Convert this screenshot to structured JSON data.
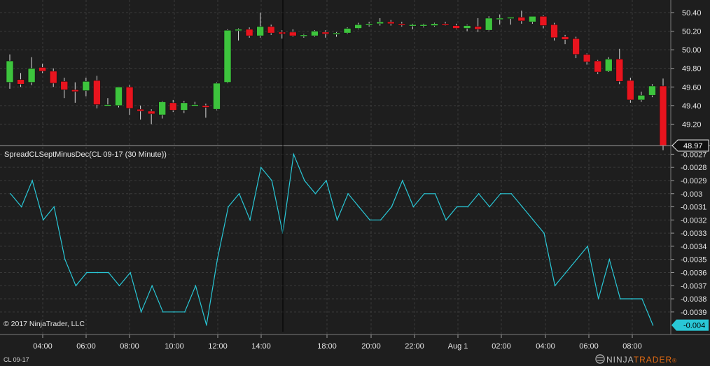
{
  "chart_data": [
    {
      "type": "candlestick",
      "instrument": "CL 09-17",
      "y_ticks": [
        "50.40",
        "50.20",
        "50.00",
        "49.80",
        "49.60",
        "49.40",
        "49.20"
      ],
      "ylim": [
        49.0,
        50.52
      ],
      "last_price": "48.97",
      "grid": true,
      "candles": [
        {
          "o": 49.65,
          "h": 49.95,
          "l": 49.58,
          "c": 49.88
        },
        {
          "o": 49.68,
          "h": 49.75,
          "l": 49.6,
          "c": 49.63
        },
        {
          "o": 49.65,
          "h": 49.92,
          "l": 49.62,
          "c": 49.8
        },
        {
          "o": 49.81,
          "h": 49.85,
          "l": 49.75,
          "c": 49.77
        },
        {
          "o": 49.77,
          "h": 49.8,
          "l": 49.6,
          "c": 49.64
        },
        {
          "o": 49.66,
          "h": 49.7,
          "l": 49.48,
          "c": 49.57
        },
        {
          "o": 49.57,
          "h": 49.65,
          "l": 49.43,
          "c": 49.55
        },
        {
          "o": 49.56,
          "h": 49.7,
          "l": 49.5,
          "c": 49.66
        },
        {
          "o": 49.67,
          "h": 49.72,
          "l": 49.37,
          "c": 49.41
        },
        {
          "o": 49.41,
          "h": 49.48,
          "l": 49.4,
          "c": 49.41
        },
        {
          "o": 49.4,
          "h": 49.6,
          "l": 49.38,
          "c": 49.6
        },
        {
          "o": 49.6,
          "h": 49.62,
          "l": 49.3,
          "c": 49.37
        },
        {
          "o": 49.36,
          "h": 49.4,
          "l": 49.25,
          "c": 49.34
        },
        {
          "o": 49.34,
          "h": 49.36,
          "l": 49.2,
          "c": 49.31
        },
        {
          "o": 49.3,
          "h": 49.45,
          "l": 49.26,
          "c": 49.44
        },
        {
          "o": 49.43,
          "h": 49.46,
          "l": 49.33,
          "c": 49.35
        },
        {
          "o": 49.35,
          "h": 49.45,
          "l": 49.32,
          "c": 49.43
        },
        {
          "o": 49.41,
          "h": 49.44,
          "l": 49.4,
          "c": 49.41
        },
        {
          "o": 49.4,
          "h": 49.42,
          "l": 49.27,
          "c": 49.38
        },
        {
          "o": 49.36,
          "h": 49.65,
          "l": 49.35,
          "c": 49.64
        },
        {
          "o": 49.65,
          "h": 50.22,
          "l": 49.64,
          "c": 50.21
        },
        {
          "o": 50.21,
          "h": 50.23,
          "l": 50.1,
          "c": 50.22
        },
        {
          "o": 50.22,
          "h": 50.24,
          "l": 50.13,
          "c": 50.15
        },
        {
          "o": 50.15,
          "h": 50.4,
          "l": 50.13,
          "c": 50.25
        },
        {
          "o": 50.25,
          "h": 50.27,
          "l": 50.16,
          "c": 50.18
        },
        {
          "o": 50.19,
          "h": 50.21,
          "l": 50.12,
          "c": 50.17
        },
        {
          "o": 50.19,
          "h": 50.22,
          "l": 50.14,
          "c": 50.15
        },
        {
          "o": 50.15,
          "h": 50.17,
          "l": 50.13,
          "c": 50.16
        },
        {
          "o": 50.15,
          "h": 50.21,
          "l": 50.14,
          "c": 50.2
        },
        {
          "o": 50.19,
          "h": 50.21,
          "l": 50.13,
          "c": 50.17
        },
        {
          "o": 50.17,
          "h": 50.19,
          "l": 50.14,
          "c": 50.18
        },
        {
          "o": 50.18,
          "h": 50.24,
          "l": 50.17,
          "c": 50.23
        },
        {
          "o": 50.23,
          "h": 50.29,
          "l": 50.22,
          "c": 50.27
        },
        {
          "o": 50.27,
          "h": 50.3,
          "l": 50.25,
          "c": 50.28
        },
        {
          "o": 50.28,
          "h": 50.34,
          "l": 50.26,
          "c": 50.3
        },
        {
          "o": 50.3,
          "h": 50.32,
          "l": 50.26,
          "c": 50.28
        },
        {
          "o": 50.28,
          "h": 50.3,
          "l": 50.25,
          "c": 50.27
        },
        {
          "o": 50.26,
          "h": 50.28,
          "l": 50.22,
          "c": 50.27
        },
        {
          "o": 50.26,
          "h": 50.28,
          "l": 50.24,
          "c": 50.27
        },
        {
          "o": 50.26,
          "h": 50.29,
          "l": 50.25,
          "c": 50.28
        },
        {
          "o": 50.28,
          "h": 50.3,
          "l": 50.26,
          "c": 50.27
        },
        {
          "o": 50.26,
          "h": 50.28,
          "l": 50.22,
          "c": 50.23
        },
        {
          "o": 50.23,
          "h": 50.27,
          "l": 50.2,
          "c": 50.26
        },
        {
          "o": 50.25,
          "h": 50.34,
          "l": 50.19,
          "c": 50.22
        },
        {
          "o": 50.21,
          "h": 50.36,
          "l": 50.2,
          "c": 50.34
        },
        {
          "o": 50.33,
          "h": 50.38,
          "l": 50.27,
          "c": 50.34
        },
        {
          "o": 50.34,
          "h": 50.35,
          "l": 50.27,
          "c": 50.35
        },
        {
          "o": 50.35,
          "h": 50.42,
          "l": 50.28,
          "c": 50.31
        },
        {
          "o": 50.3,
          "h": 50.36,
          "l": 50.28,
          "c": 50.36
        },
        {
          "o": 50.36,
          "h": 50.37,
          "l": 50.23,
          "c": 50.26
        },
        {
          "o": 50.27,
          "h": 50.29,
          "l": 50.1,
          "c": 50.13
        },
        {
          "o": 50.14,
          "h": 50.16,
          "l": 50.06,
          "c": 50.11
        },
        {
          "o": 50.12,
          "h": 50.14,
          "l": 49.91,
          "c": 49.95
        },
        {
          "o": 49.95,
          "h": 49.96,
          "l": 49.84,
          "c": 49.87
        },
        {
          "o": 49.88,
          "h": 49.89,
          "l": 49.74,
          "c": 49.76
        },
        {
          "o": 49.77,
          "h": 49.92,
          "l": 49.76,
          "c": 49.9
        },
        {
          "o": 49.9,
          "h": 50.01,
          "l": 49.63,
          "c": 49.66
        },
        {
          "o": 49.67,
          "h": 49.7,
          "l": 49.43,
          "c": 49.46
        },
        {
          "o": 49.46,
          "h": 49.55,
          "l": 49.44,
          "c": 49.51
        },
        {
          "o": 49.51,
          "h": 49.63,
          "l": 49.49,
          "c": 49.61
        },
        {
          "o": 49.61,
          "h": 49.69,
          "l": 48.92,
          "c": 48.97
        }
      ]
    },
    {
      "type": "line",
      "title": "SpreadCLSeptMinusDec(CL 09-17 (30 Minute))",
      "y_ticks": [
        "-0.0027",
        "-0.0028",
        "-0.0029",
        "-0.003",
        "-0.0031",
        "-0.0032",
        "-0.0033",
        "-0.0034",
        "-0.0035",
        "-0.0036",
        "-0.0037",
        "-0.0038",
        "-0.0039"
      ],
      "ylim": [
        -0.00405,
        -0.00265
      ],
      "last_value": "-0.004",
      "line_color": "#29c7d6",
      "y": [
        -0.003,
        -0.0031,
        -0.0029,
        -0.0032,
        -0.0031,
        -0.0035,
        -0.0037,
        -0.0036,
        -0.0036,
        -0.0036,
        -0.0037,
        -0.0036,
        -0.0039,
        -0.0037,
        -0.0039,
        -0.0039,
        -0.0039,
        -0.0037,
        -0.004,
        -0.0035,
        -0.0031,
        -0.003,
        -0.0032,
        -0.0028,
        -0.0029,
        -0.0033,
        -0.0027,
        -0.0029,
        -0.003,
        -0.0029,
        -0.0032,
        -0.003,
        -0.0031,
        -0.0032,
        -0.0032,
        -0.0031,
        -0.0029,
        -0.0031,
        -0.003,
        -0.003,
        -0.0032,
        -0.0031,
        -0.0031,
        -0.003,
        -0.0031,
        -0.003,
        -0.003,
        -0.0031,
        -0.0032,
        -0.0033,
        -0.0037,
        -0.0036,
        -0.0035,
        -0.0034,
        -0.0038,
        -0.0035,
        -0.0038,
        -0.0038,
        -0.0038,
        -0.004
      ]
    }
  ],
  "x_axis": {
    "labels": [
      "04:00",
      "06:00",
      "08:00",
      "10:00",
      "12:00",
      "14:00",
      "18:00",
      "20:00",
      "22:00",
      "Aug 1",
      "02:00",
      "04:00",
      "06:00",
      "08:00"
    ]
  },
  "copyright": "© 2017 NinjaTrader, LLC",
  "footer_instrument": "CL 09-17",
  "logo": {
    "text_a": "NINJA",
    "text_b": "TRADER",
    "reg": "®"
  },
  "colors": {
    "background": "#1e1e1e",
    "up": "#3dc43d",
    "down": "#e8141e",
    "spread_line": "#29c7d6",
    "grid": "#3a3a3a"
  }
}
